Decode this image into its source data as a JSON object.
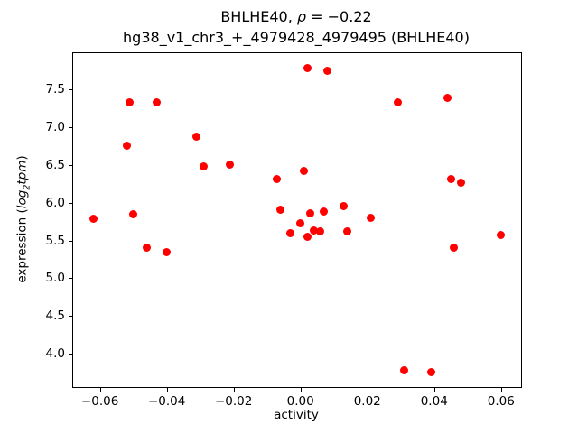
{
  "chart_data": {
    "type": "scatter",
    "title1_pre": "BHLHE40, ",
    "title1_rho": "ρ",
    "title1_rest": " = −0.22",
    "title_line2": "hg38_v1_chr3_+_4979428_4979495 (BHLHE40)",
    "xlabel": "activity",
    "ylabel_pre": "expression (",
    "ylabel_log": "log",
    "ylabel_sub": "2",
    "ylabel_tpm": "tpm",
    "ylabel_post": ")",
    "marker_color": "#ff0000",
    "xlim": [
      -0.068,
      0.066
    ],
    "ylim": [
      3.56,
      7.98
    ],
    "x_ticks": [
      -0.06,
      -0.04,
      -0.02,
      0.0,
      0.02,
      0.04,
      0.06
    ],
    "x_tick_labels": [
      "−0.06",
      "−0.04",
      "−0.02",
      "0.00",
      "0.02",
      "0.04",
      "0.06"
    ],
    "y_ticks": [
      4.0,
      4.5,
      5.0,
      5.5,
      6.0,
      6.5,
      7.0,
      7.5
    ],
    "y_tick_labels": [
      "4.0",
      "4.5",
      "5.0",
      "5.5",
      "6.0",
      "6.5",
      "7.0",
      "7.5"
    ],
    "points": [
      [
        -0.062,
        5.79
      ],
      [
        -0.052,
        6.75
      ],
      [
        -0.051,
        7.33
      ],
      [
        -0.05,
        5.85
      ],
      [
        -0.046,
        5.4
      ],
      [
        -0.043,
        7.33
      ],
      [
        -0.04,
        5.35
      ],
      [
        -0.031,
        6.87
      ],
      [
        -0.029,
        6.48
      ],
      [
        -0.021,
        6.51
      ],
      [
        -0.007,
        6.31
      ],
      [
        -0.006,
        5.91
      ],
      [
        -0.003,
        5.6
      ],
      [
        0.0,
        5.73
      ],
      [
        0.001,
        6.42
      ],
      [
        0.002,
        7.78
      ],
      [
        0.002,
        5.55
      ],
      [
        0.003,
        5.86
      ],
      [
        0.004,
        5.63
      ],
      [
        0.006,
        5.62
      ],
      [
        0.007,
        5.88
      ],
      [
        0.008,
        7.75
      ],
      [
        0.013,
        5.96
      ],
      [
        0.014,
        5.62
      ],
      [
        0.021,
        5.8
      ],
      [
        0.029,
        7.33
      ],
      [
        0.031,
        3.78
      ],
      [
        0.039,
        3.76
      ],
      [
        0.044,
        7.39
      ],
      [
        0.045,
        6.31
      ],
      [
        0.046,
        5.4
      ],
      [
        0.048,
        6.26
      ],
      [
        0.06,
        5.57
      ]
    ]
  }
}
